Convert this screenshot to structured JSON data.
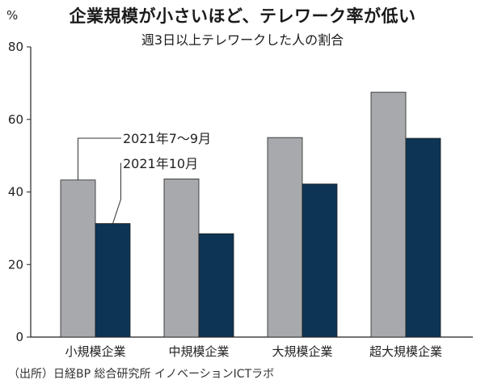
{
  "title": "企業規模が小さいほど、テレワーク率が低い",
  "subtitle": "週3日以上テレワークした人の割合",
  "source": "（出所）日経BP 総合研究所 イノベーションICTラボ",
  "colors": {
    "series1": "#a7a9ac",
    "series2": "#0d3454",
    "axis": "#222222"
  },
  "chart_data": {
    "type": "bar",
    "title": "企業規模が小さいほど、テレワーク率が低い",
    "subtitle": "週3日以上テレワークした人の割合",
    "ylabel": "%",
    "ylim": [
      0,
      80
    ],
    "yticks": [
      0,
      20,
      40,
      60,
      80
    ],
    "grid": false,
    "legend": "annotation",
    "categories": [
      "小規模企業",
      "中規模企業",
      "大規模企業",
      "超大規模企業"
    ],
    "series": [
      {
        "name": "2021年7〜9月",
        "values": [
          43.3,
          43.6,
          55.0,
          67.5
        ]
      },
      {
        "name": "2021年10月",
        "values": [
          31.3,
          28.5,
          42.2,
          54.8
        ]
      }
    ]
  }
}
